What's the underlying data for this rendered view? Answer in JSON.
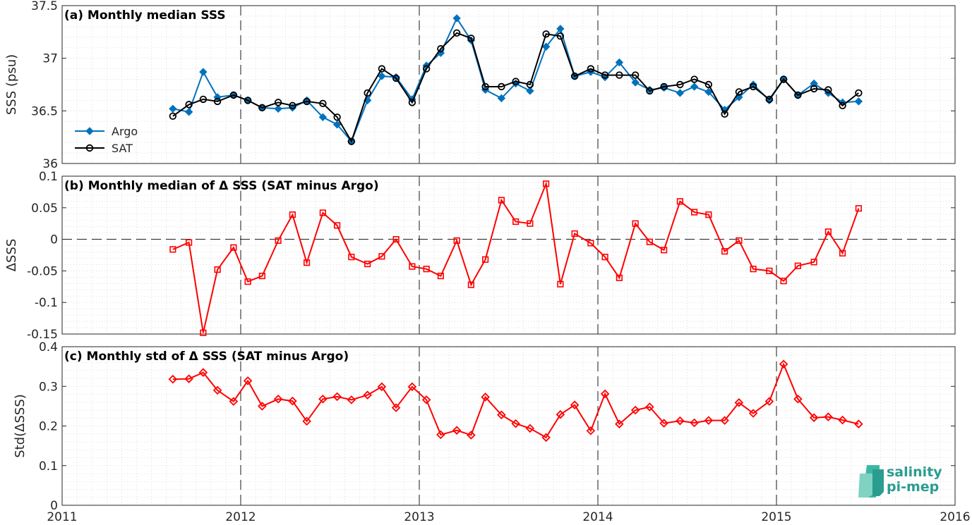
{
  "chart_data": [
    {
      "type": "line",
      "title": "(a) Monthly median SSS",
      "xlabel": "",
      "ylabel": "SSS (psu)",
      "xlim": [
        2011,
        2016
      ],
      "ylim": [
        36,
        37.5
      ],
      "xticks": [
        "2011",
        "2012",
        "2013",
        "2014",
        "2015",
        "2016"
      ],
      "yticks": [
        "36",
        "36.5",
        "37",
        "37.5"
      ],
      "grid": "dotted",
      "legend_position": "bottom-left",
      "x": [
        2011.62,
        2011.71,
        2011.79,
        2011.87,
        2011.96,
        2012.04,
        2012.12,
        2012.21,
        2012.29,
        2012.37,
        2012.46,
        2012.54,
        2012.62,
        2012.71,
        2012.79,
        2012.87,
        2012.96,
        2013.04,
        2013.12,
        2013.21,
        2013.29,
        2013.37,
        2013.46,
        2013.54,
        2013.62,
        2013.71,
        2013.79,
        2013.87,
        2013.96,
        2014.04,
        2014.12,
        2014.21,
        2014.29,
        2014.37,
        2014.46,
        2014.54,
        2014.62,
        2014.71,
        2014.79,
        2014.87,
        2014.96,
        2015.04,
        2015.12,
        2015.21,
        2015.29,
        2015.37,
        2015.46
      ],
      "series": [
        {
          "name": "Argo",
          "color": "#0072BD",
          "marker": "diamond-filled",
          "values": [
            36.52,
            36.49,
            36.87,
            36.63,
            36.65,
            36.6,
            36.53,
            36.52,
            36.53,
            36.6,
            36.44,
            36.37,
            36.21,
            36.6,
            36.83,
            36.82,
            36.61,
            36.93,
            37.05,
            37.38,
            37.17,
            36.7,
            36.62,
            36.76,
            36.69,
            37.11,
            37.28,
            36.83,
            36.87,
            36.82,
            36.96,
            36.77,
            36.7,
            36.72,
            36.67,
            36.73,
            36.68,
            36.51,
            36.63,
            36.75,
            36.6,
            36.8,
            36.65,
            36.76,
            36.67,
            36.58,
            36.59
          ]
        },
        {
          "name": "SAT",
          "color": "#000000",
          "marker": "circle-open",
          "values": [
            36.45,
            36.56,
            36.61,
            36.59,
            36.65,
            36.6,
            36.53,
            36.58,
            36.55,
            36.59,
            36.57,
            36.44,
            36.21,
            36.67,
            36.9,
            36.81,
            36.58,
            36.9,
            37.09,
            37.24,
            37.19,
            36.73,
            36.73,
            36.78,
            36.75,
            37.23,
            37.21,
            36.83,
            36.9,
            36.84,
            36.84,
            36.84,
            36.69,
            36.73,
            36.75,
            36.8,
            36.75,
            36.47,
            36.68,
            36.73,
            36.61,
            36.8,
            36.65,
            36.71,
            36.7,
            36.55,
            36.67
          ]
        }
      ]
    },
    {
      "type": "line",
      "title": "(b) Monthly median of Δ SSS (SAT minus Argo)",
      "xlabel": "",
      "ylabel": "ΔSSS",
      "xlim": [
        2011,
        2016
      ],
      "ylim": [
        -0.15,
        0.1
      ],
      "xticks": [
        "2011",
        "2012",
        "2013",
        "2014",
        "2015",
        "2016"
      ],
      "yticks": [
        "-0.15",
        "-0.1",
        "-0.05",
        "0",
        "0.05",
        "0.1"
      ],
      "grid": "dotted",
      "reference_line": 0,
      "x": [
        2011.62,
        2011.71,
        2011.79,
        2011.87,
        2011.96,
        2012.04,
        2012.12,
        2012.21,
        2012.29,
        2012.37,
        2012.46,
        2012.54,
        2012.62,
        2012.71,
        2012.79,
        2012.87,
        2012.96,
        2013.04,
        2013.12,
        2013.21,
        2013.29,
        2013.37,
        2013.46,
        2013.54,
        2013.62,
        2013.71,
        2013.79,
        2013.87,
        2013.96,
        2014.04,
        2014.12,
        2014.21,
        2014.29,
        2014.37,
        2014.46,
        2014.54,
        2014.62,
        2014.71,
        2014.79,
        2014.87,
        2014.96,
        2015.04,
        2015.12,
        2015.21,
        2015.29,
        2015.37,
        2015.46
      ],
      "series": [
        {
          "color": "#FF0000",
          "marker": "square-open",
          "values": [
            -0.016,
            -0.005,
            -0.148,
            -0.048,
            -0.013,
            -0.067,
            -0.058,
            -0.002,
            0.039,
            -0.037,
            0.042,
            0.022,
            -0.028,
            -0.039,
            -0.027,
            0.0,
            -0.043,
            -0.047,
            -0.058,
            -0.002,
            -0.072,
            -0.032,
            0.062,
            0.028,
            0.025,
            0.088,
            -0.071,
            0.009,
            -0.006,
            -0.028,
            -0.061,
            0.025,
            -0.004,
            -0.017,
            0.06,
            0.043,
            0.039,
            -0.019,
            -0.002,
            -0.047,
            -0.05,
            -0.066,
            -0.042,
            -0.036,
            0.012,
            -0.022,
            0.049
          ]
        }
      ]
    },
    {
      "type": "line",
      "title": "(c) Monthly std of Δ SSS (SAT minus Argo)",
      "xlabel": "",
      "ylabel": "Std(ΔSSS)",
      "xlim": [
        2011,
        2016
      ],
      "ylim": [
        0,
        0.4
      ],
      "xticks": [
        "2011",
        "2012",
        "2013",
        "2014",
        "2015",
        "2016"
      ],
      "yticks": [
        "0",
        "0.1",
        "0.2",
        "0.3",
        "0.4"
      ],
      "grid": "dotted",
      "x": [
        2011.62,
        2011.71,
        2011.79,
        2011.87,
        2011.96,
        2012.04,
        2012.12,
        2012.21,
        2012.29,
        2012.37,
        2012.46,
        2012.54,
        2012.62,
        2012.71,
        2012.79,
        2012.87,
        2012.96,
        2013.04,
        2013.12,
        2013.21,
        2013.29,
        2013.37,
        2013.46,
        2013.54,
        2013.62,
        2013.71,
        2013.79,
        2013.87,
        2013.96,
        2014.04,
        2014.12,
        2014.21,
        2014.29,
        2014.37,
        2014.46,
        2014.54,
        2014.62,
        2014.71,
        2014.79,
        2014.87,
        2014.96,
        2015.04,
        2015.12,
        2015.21,
        2015.29,
        2015.37,
        2015.46
      ],
      "series": [
        {
          "color": "#FF0000",
          "marker": "diamond-open",
          "values": [
            0.318,
            0.319,
            0.335,
            0.29,
            0.262,
            0.314,
            0.25,
            0.268,
            0.263,
            0.212,
            0.268,
            0.274,
            0.266,
            0.278,
            0.299,
            0.246,
            0.299,
            0.266,
            0.178,
            0.189,
            0.177,
            0.273,
            0.228,
            0.206,
            0.194,
            0.171,
            0.229,
            0.253,
            0.188,
            0.281,
            0.205,
            0.24,
            0.248,
            0.207,
            0.213,
            0.208,
            0.214,
            0.214,
            0.259,
            0.232,
            0.262,
            0.356,
            0.268,
            0.221,
            0.223,
            0.215,
            0.205
          ]
        }
      ]
    }
  ],
  "logo": {
    "line1": "salinity",
    "line2": "pi-mep",
    "color": "#2a9d8f"
  }
}
